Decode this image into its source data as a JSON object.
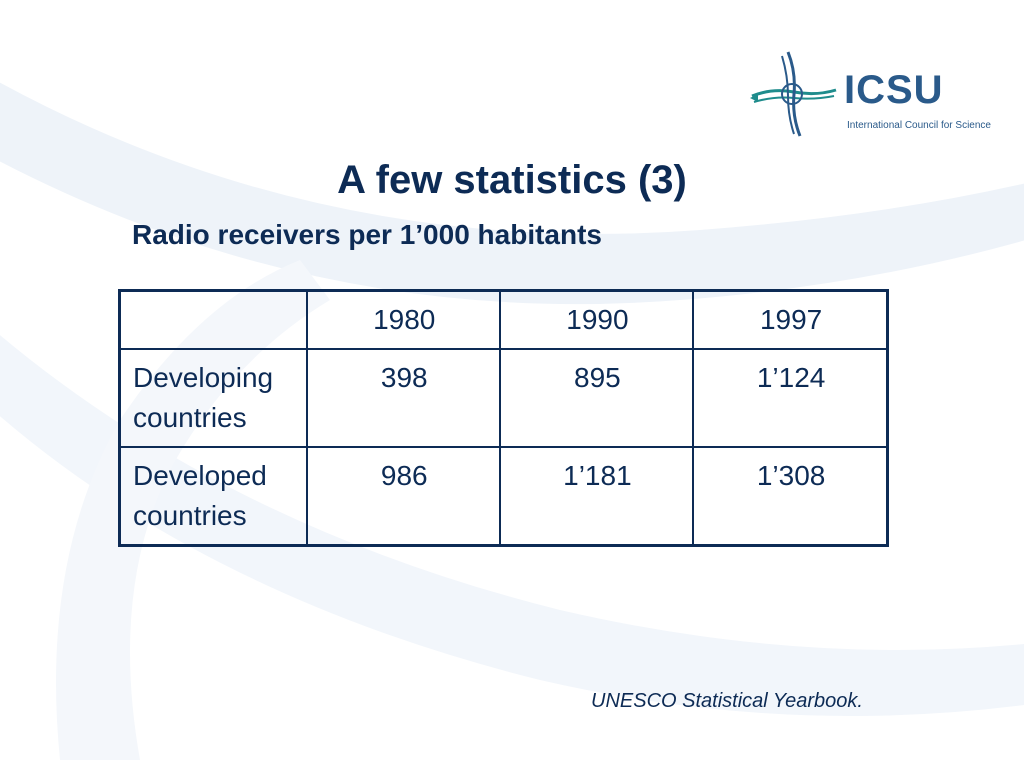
{
  "logo": {
    "name": "ICSU",
    "tagline": "International Council for Science"
  },
  "slide": {
    "title": "A few statistics (3)",
    "subtitle": "Radio receivers per 1’000 habitants"
  },
  "table": {
    "headers": [
      "",
      "1980",
      "1990",
      "1997"
    ],
    "rows": [
      {
        "label": "Developing countries",
        "values": [
          "398",
          "895",
          "1’124"
        ]
      },
      {
        "label": "Developed countries",
        "values": [
          "986",
          "1’181",
          "1’308"
        ]
      }
    ]
  },
  "source": "UNESCO Statistical Yearbook.",
  "colors": {
    "text": "#0d2b55",
    "logo_blue": "#2a5a8a",
    "logo_teal": "#1f8c8c",
    "watermark": "#e8eef6"
  }
}
